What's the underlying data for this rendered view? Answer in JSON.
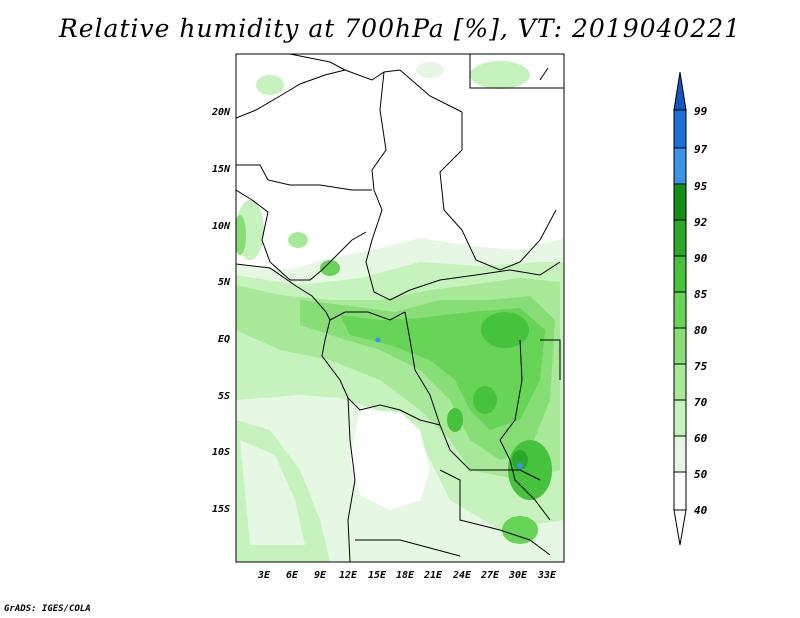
{
  "title": "Relative humidity at 700hPa [%], VT: 2019040221",
  "footer": "GrADS: IGES/COLA",
  "map": {
    "lat_labels": [
      "20N",
      "15N",
      "10N",
      "5N",
      "EQ",
      "5S",
      "10S",
      "15S"
    ],
    "lon_labels": [
      "3E",
      "6E",
      "9E",
      "12E",
      "15E",
      "18E",
      "21E",
      "24E",
      "27E",
      "30E",
      "33E"
    ]
  },
  "colorbar": {
    "levels": [
      "40",
      "50",
      "60",
      "70",
      "75",
      "80",
      "85",
      "90",
      "92",
      "95",
      "97",
      "99"
    ],
    "colors": [
      "#ffffff",
      "#e6f8e3",
      "#c6f2bd",
      "#a7e998",
      "#88de76",
      "#67d357",
      "#46c23c",
      "#2aa82a",
      "#128f15",
      "#3c94e6",
      "#1f6fd8",
      "#1255c0"
    ]
  }
}
